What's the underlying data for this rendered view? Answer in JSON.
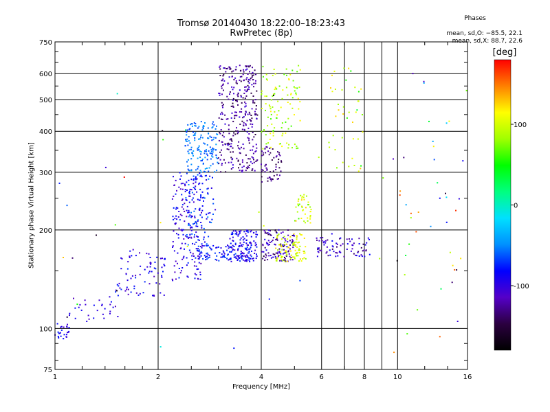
{
  "chart_data": {
    "type": "scatter",
    "title": "Tromsø 20140430 18:22:00–18:23:43",
    "subtitle": "RwPretec (8p)",
    "xlabel": "Frequency [MHz]",
    "ylabel": "Stationary phase Virtual Height [km]",
    "x_scale": "log",
    "y_scale": "log",
    "xlim": [
      1,
      16
    ],
    "ylim": [
      75,
      750
    ],
    "x_ticks": [
      1,
      2,
      4,
      6,
      8,
      10,
      16
    ],
    "x_minor_ticks": [
      7,
      9
    ],
    "y_ticks": [
      75,
      100,
      200,
      300,
      400,
      500,
      600,
      750
    ],
    "grid": true,
    "phase_info": {
      "title": "Phases",
      "line1": "mean, sd,O: −85.5, 22.1",
      "line2": "mean, sd,X: 88.7, 22.6"
    },
    "colorbar": {
      "label": "[deg]",
      "range": [
        -180,
        180
      ],
      "ticks": [
        -100,
        0,
        100
      ],
      "colormap": [
        "#000000",
        "#2b0040",
        "#5500c8",
        "#0000ff",
        "#0090ff",
        "#00e0ff",
        "#00ff80",
        "#00ff00",
        "#a0ff00",
        "#ffff00",
        "#ff8000",
        "#ff0000"
      ]
    },
    "clusters": [
      {
        "f": [
          1.0,
          1.1
        ],
        "h": [
          92,
          105
        ],
        "phase": [
          -110,
          -70
        ],
        "n": 25
      },
      {
        "f": [
          1.1,
          1.55
        ],
        "h": [
          105,
          125
        ],
        "phase": [
          -120,
          -80
        ],
        "n": 30
      },
      {
        "f": [
          1.5,
          2.1
        ],
        "h": [
          125,
          175
        ],
        "phase": [
          -120,
          -70
        ],
        "n": 80
      },
      {
        "f": [
          2.2,
          2.7
        ],
        "h": [
          140,
          300
        ],
        "phase": [
          -120,
          -70
        ],
        "n": 180
      },
      {
        "f": [
          2.4,
          3.0
        ],
        "h": [
          300,
          430
        ],
        "phase": [
          -70,
          -40
        ],
        "n": 150
      },
      {
        "f": [
          2.4,
          2.9
        ],
        "h": [
          180,
          300
        ],
        "phase": [
          -100,
          -50
        ],
        "n": 90
      },
      {
        "f": [
          3.0,
          3.9
        ],
        "h": [
          300,
          640
        ],
        "phase": [
          -150,
          -100
        ],
        "n": 330
      },
      {
        "f": [
          3.2,
          3.9
        ],
        "h": [
          160,
          200
        ],
        "phase": [
          -110,
          -70
        ],
        "n": 120
      },
      {
        "f": [
          2.6,
          3.8
        ],
        "h": [
          160,
          180
        ],
        "phase": [
          -110,
          -60
        ],
        "n": 110
      },
      {
        "f": [
          4.0,
          5.0
        ],
        "h": [
          160,
          200
        ],
        "phase": [
          -150,
          -90
        ],
        "n": 120
      },
      {
        "f": [
          4.4,
          5.4
        ],
        "h": [
          160,
          195
        ],
        "phase": [
          80,
          130
        ],
        "n": 90
      },
      {
        "f": [
          4.0,
          5.2
        ],
        "h": [
          350,
          640
        ],
        "phase": [
          60,
          120
        ],
        "n": 110
      },
      {
        "f": [
          4.0,
          4.6
        ],
        "h": [
          280,
          360
        ],
        "phase": [
          -150,
          -110
        ],
        "n": 60
      },
      {
        "f": [
          5.0,
          5.6
        ],
        "h": [
          210,
          260
        ],
        "phase": [
          60,
          130
        ],
        "n": 40
      },
      {
        "f": [
          5.8,
          8.3
        ],
        "h": [
          165,
          190
        ],
        "phase": [
          -140,
          -80
        ],
        "n": 80
      },
      {
        "f": [
          6.3,
          8.0
        ],
        "h": [
          300,
          640
        ],
        "phase": [
          50,
          130
        ],
        "n": 40
      },
      {
        "f": [
          10,
          16
        ],
        "h": [
          90,
          650
        ],
        "phase": [
          -150,
          160
        ],
        "n": 35
      },
      {
        "f": [
          1.0,
          16
        ],
        "h": [
          80,
          650
        ],
        "phase": [
          -180,
          180
        ],
        "n": 40
      }
    ]
  }
}
